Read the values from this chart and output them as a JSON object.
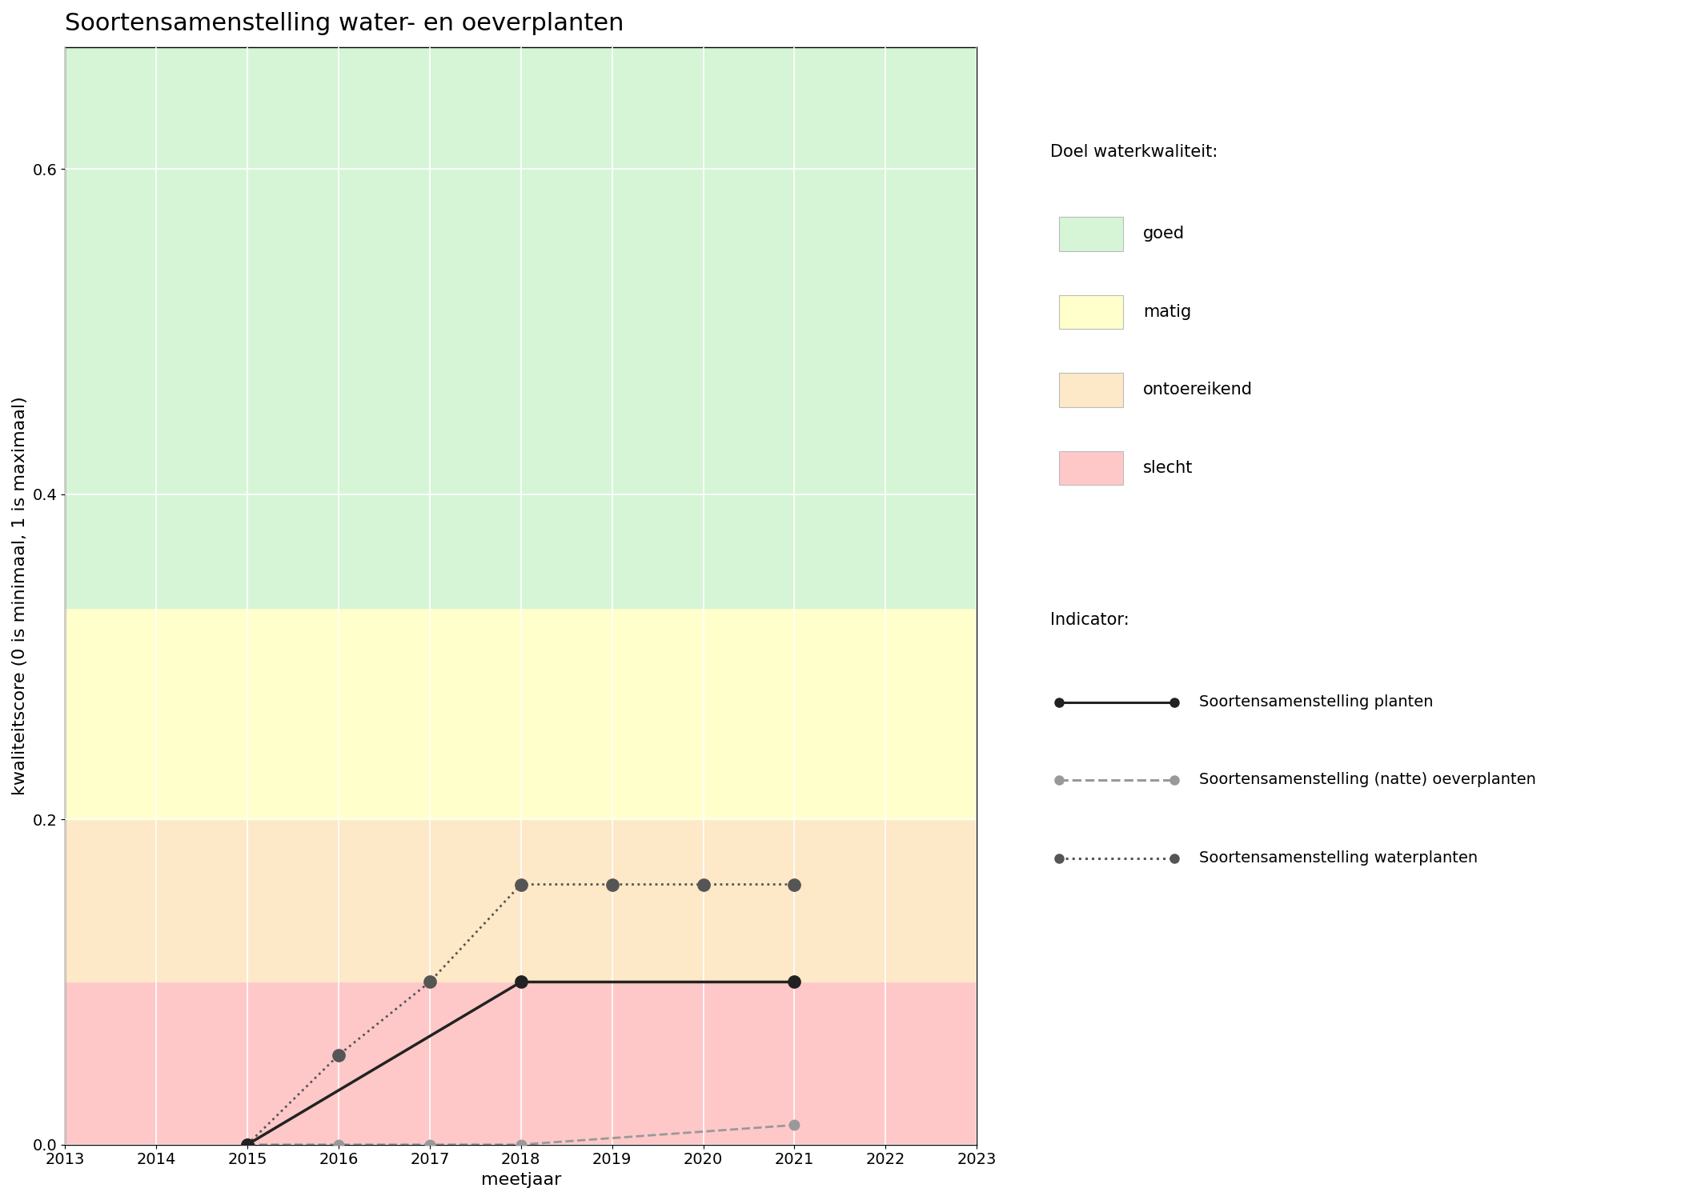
{
  "title": "Soortensamenstelling water- en oeverplanten",
  "xlabel": "meetjaar",
  "ylabel": "kwaliteitscore (0 is minimaal, 1 is maximaal)",
  "xlim": [
    2013,
    2023
  ],
  "ylim": [
    0,
    0.675
  ],
  "xticks": [
    2013,
    2014,
    2015,
    2016,
    2017,
    2018,
    2019,
    2020,
    2021,
    2022,
    2023
  ],
  "yticks": [
    0.0,
    0.2,
    0.4,
    0.6
  ],
  "bg_colors": {
    "goed": "#d6f5d6",
    "matig": "#ffffcc",
    "ontoereikend": "#fde8c8",
    "slecht": "#ffc8c8"
  },
  "bg_thresholds": {
    "slecht_max": 0.1,
    "ontoereikend_max": 0.2,
    "matig_max": 0.33,
    "goed_min": 0.33
  },
  "line1_x": [
    2015,
    2018,
    2021
  ],
  "line1_y": [
    0.0,
    0.1,
    0.1
  ],
  "line1_color": "#222222",
  "line1_style": "solid",
  "line1_label": "Soortensamenstelling planten",
  "line2_x": [
    2015,
    2016,
    2017,
    2018,
    2021
  ],
  "line2_y": [
    0.0,
    0.0,
    0.0,
    0.0,
    0.012
  ],
  "line2_color": "#999999",
  "line2_style": "dashed",
  "line2_label": "Soortensamenstelling (natte) oeverplanten",
  "line3_x": [
    2015,
    2016,
    2017,
    2018,
    2019,
    2020,
    2021
  ],
  "line3_y": [
    0.0,
    0.055,
    0.1,
    0.16,
    0.16,
    0.16,
    0.16
  ],
  "line3_color": "#555555",
  "line3_style": "dotted",
  "line3_label": "Soortensamenstelling waterplanten",
  "legend_title1": "Doel waterkwaliteit:",
  "legend_title2": "Indicator:",
  "legend_labels": [
    "goed",
    "matig",
    "ontoereikend",
    "slecht"
  ],
  "legend_colors": [
    "#d6f5d6",
    "#ffffcc",
    "#fde8c8",
    "#ffc8c8"
  ],
  "title_fontsize": 22,
  "label_fontsize": 16,
  "tick_fontsize": 14,
  "legend_fontsize": 15
}
